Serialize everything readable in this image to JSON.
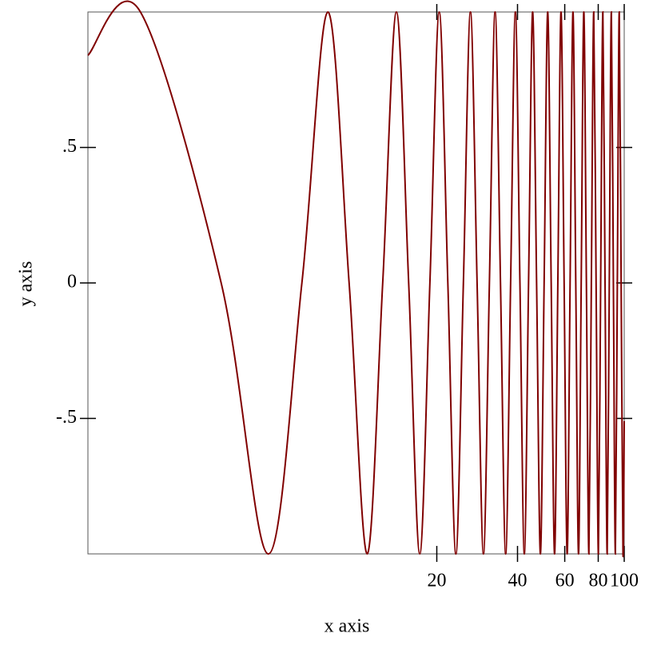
{
  "chart_data": {
    "type": "line",
    "x_label": "x axis",
    "y_label": "y axis",
    "x_log": true,
    "xlim": [
      1,
      100
    ],
    "ylim": [
      -1,
      1
    ],
    "xticks": [
      20,
      40,
      60,
      80,
      100
    ],
    "yticks": [
      {
        "value": -0.5,
        "label": "-.5"
      },
      0,
      {
        "value": 0.5,
        "label": ".5"
      }
    ],
    "series": [
      {
        "color": "#800000",
        "x": [
          1,
          1.57,
          3.14,
          4.71,
          6.28,
          7.85,
          9.42,
          11.0,
          12.57,
          14.14,
          15.71,
          17.28,
          18.85,
          20.42,
          21.99,
          23.56,
          25.13,
          26.7,
          28.27,
          29.85,
          31.42,
          32.99,
          34.56,
          36.13,
          37.7,
          39.27,
          40.84,
          42.41,
          43.98,
          45.55,
          47.12,
          48.69,
          50.27,
          51.84,
          53.41,
          54.98,
          56.55,
          58.12,
          59.69,
          61.26,
          62.83,
          64.4,
          65.97,
          67.54,
          69.12,
          70.69,
          72.26,
          73.83,
          75.4,
          76.97,
          78.54,
          80.11,
          81.68,
          83.25,
          84.82,
          86.39,
          87.96,
          89.54,
          91.11,
          92.68,
          94.25,
          95.82,
          97.39,
          98.96,
          100
        ],
        "values": [
          0.84,
          1,
          0,
          -1,
          0,
          1,
          0,
          -1,
          0,
          1,
          0,
          -1,
          0,
          1,
          0,
          -1,
          0,
          1,
          0,
          -1,
          0,
          1,
          0,
          -1,
          0,
          1,
          0,
          -1,
          0,
          1,
          0,
          -1,
          0,
          1,
          0,
          -1,
          0,
          1,
          0,
          -1,
          0,
          1,
          0,
          -1,
          0,
          1,
          0,
          -1,
          0,
          1,
          0,
          -1,
          0,
          1,
          0,
          -1,
          0,
          1,
          0,
          -1,
          0,
          1,
          0,
          -1,
          -0.51
        ]
      }
    ]
  }
}
